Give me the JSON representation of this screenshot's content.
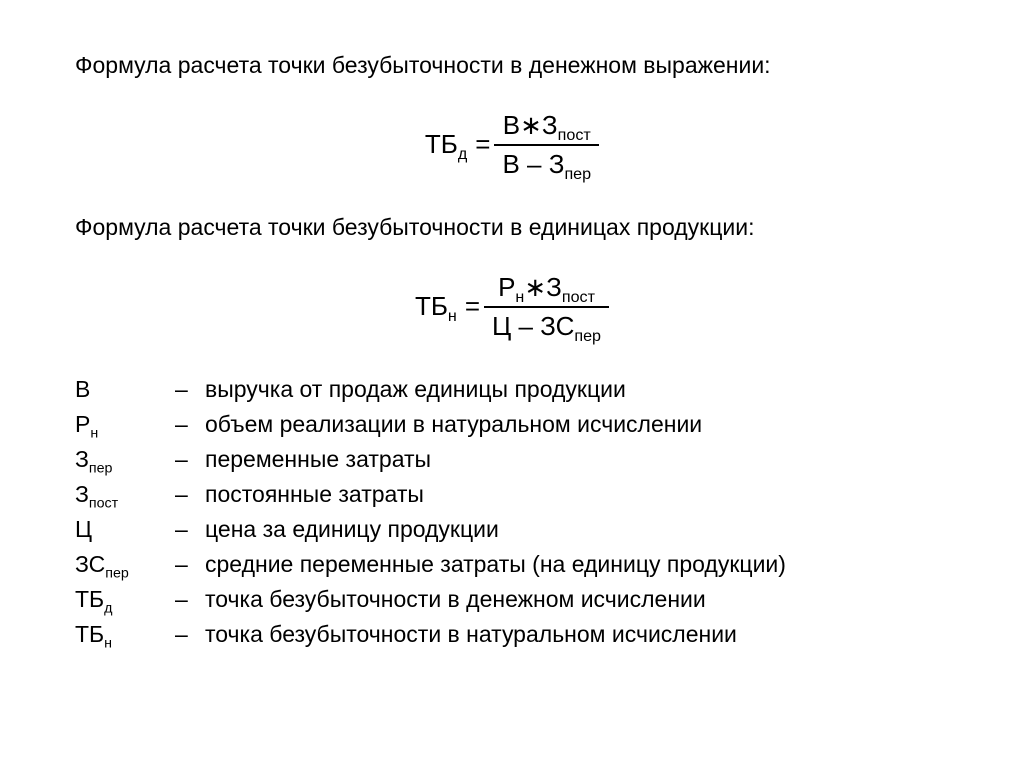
{
  "heading1": "Формула расчета точки безубыточности в денежном выражении:",
  "heading2": "Формула расчета точки безубыточности в единицах продукции:",
  "formula1": {
    "lhs_main": "ТБ",
    "lhs_sub": "д",
    "eq": "=",
    "num_a": "В",
    "num_op": "∗",
    "num_b_main": "З",
    "num_b_sub": "пост",
    "den_a": "В",
    "den_minus": " – ",
    "den_b_main": "З",
    "den_b_sub": "пер"
  },
  "formula2": {
    "lhs_main": "ТБ",
    "lhs_sub": "н",
    "eq": "=",
    "num_a_main": "Р",
    "num_a_sub": "н",
    "num_op": "∗",
    "num_b_main": "З",
    "num_b_sub": "пост",
    "den_a": "Ц",
    "den_minus": " – ",
    "den_b_main": "ЗС",
    "den_b_sub": "пер"
  },
  "legend": [
    {
      "sym_main": "В",
      "sym_sub": "",
      "desc": "выручка от продаж единицы продукции"
    },
    {
      "sym_main": "Р",
      "sym_sub": "н",
      "desc": "объем реализации в натуральном исчислении"
    },
    {
      "sym_main": "З",
      "sym_sub": "пер",
      "desc": "переменные затраты"
    },
    {
      "sym_main": "З",
      "sym_sub": "пост",
      "desc": "постоянные затраты"
    },
    {
      "sym_main": "Ц",
      "sym_sub": "",
      "desc": "цена за единицу продукции"
    },
    {
      "sym_main": "ЗС",
      "sym_sub": "пер",
      "desc": "средние переменные затраты (на единицу продукции)"
    },
    {
      "sym_main": "ТБ",
      "sym_sub": "д",
      "desc": "точка безубыточности в денежном исчислении"
    },
    {
      "sym_main": "ТБ",
      "sym_sub": "н",
      "desc": "точка безубыточности в натуральном исчислении"
    }
  ],
  "dash": "–"
}
